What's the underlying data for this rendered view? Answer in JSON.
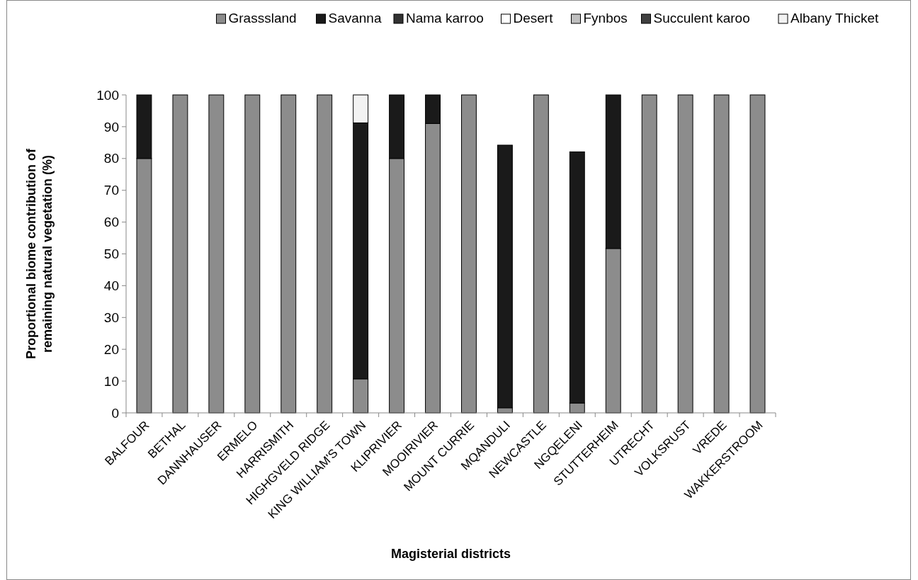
{
  "chart_data": {
    "type": "bar",
    "stacked": true,
    "xlabel": "Magisterial districts",
    "ylabel": "Proportional biome contribution of\nremaining natural vegetation (%)",
    "categories": [
      "BALFOUR",
      "BETHAL",
      "DANNHAUSER",
      "ERMELO",
      "HARRISMITH",
      "HIGHGVELD RIDGE",
      "KING WILLIAM'S TOWN",
      "KLIPRIVIER",
      "MOOIRIVIER",
      "MOUNT CURRIE",
      "MQANDULI",
      "NEWCASTLE",
      "NGQELENI",
      "STUTTERHEIM",
      "UTRECHT",
      "VOLKSRUST",
      "VREDE",
      "WAKKERSTROOM"
    ],
    "series": [
      {
        "name": "Grasssland",
        "color": "#8c8c8c",
        "values": [
          80,
          100,
          100,
          100,
          100,
          100,
          10.7,
          80,
          91,
          100,
          1.6,
          100,
          3.1,
          51.7,
          100,
          100,
          100,
          100
        ]
      },
      {
        "name": "Savanna",
        "color": "#1a1a1a",
        "values": [
          20,
          0,
          0,
          0,
          0,
          0,
          80.5,
          20,
          9,
          0,
          82.6,
          0,
          79,
          48.3,
          0,
          0,
          0,
          0
        ]
      },
      {
        "name": "Nama karroo",
        "color": "#333333",
        "values": [
          0,
          0,
          0,
          0,
          0,
          0,
          0,
          0,
          0,
          0,
          0,
          0,
          0,
          0,
          0,
          0,
          0,
          0
        ]
      },
      {
        "name": "Desert",
        "color": "#ffffff",
        "values": [
          0,
          0,
          0,
          0,
          0,
          0,
          0,
          0,
          0,
          0,
          0,
          0,
          0,
          0,
          0,
          0,
          0,
          0
        ]
      },
      {
        "name": "Fynbos",
        "color": "#bfbfbf",
        "values": [
          0,
          0,
          0,
          0,
          0,
          0,
          0,
          0,
          0,
          0,
          0,
          0,
          0,
          0,
          0,
          0,
          0,
          0
        ]
      },
      {
        "name": "Succulent karoo",
        "color": "#404040",
        "values": [
          0,
          0,
          0,
          0,
          0,
          0,
          0,
          0,
          0,
          0,
          0,
          0,
          0,
          0,
          0,
          0,
          0,
          0
        ]
      },
      {
        "name": "Albany Thicket",
        "color": "#f2f2f2",
        "values": [
          0,
          0,
          0,
          0,
          0,
          0,
          8.8,
          0,
          0,
          0,
          0,
          0,
          0,
          0,
          0,
          0,
          0,
          0
        ]
      }
    ],
    "ylim": [
      0,
      100
    ],
    "yticks": [
      0,
      10,
      20,
      30,
      40,
      50,
      60,
      70,
      80,
      90,
      100
    ],
    "legend": "top"
  }
}
